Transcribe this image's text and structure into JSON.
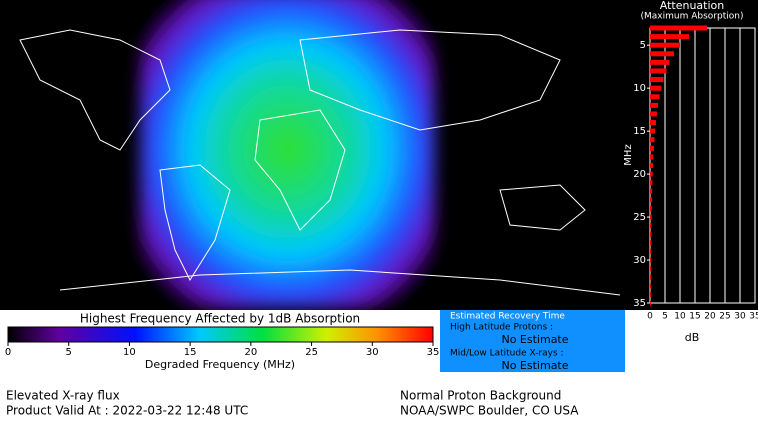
{
  "map": {},
  "colorbar": {
    "title": "Highest Frequency Affected by 1dB Absorption",
    "label": "Degraded Frequency (MHz)",
    "range": [
      0,
      35
    ],
    "ticks": [
      0,
      5,
      10,
      15,
      20,
      25,
      30,
      35
    ]
  },
  "recovery": {
    "title": "Estimated Recovery Time",
    "high_label": "High Latitude Protons :",
    "high_value": "No Estimate",
    "low_label": "Mid/Low Latitude X-rays :",
    "low_value": "No Estimate"
  },
  "footer": {
    "left_1": "Elevated X-ray flux",
    "left_2": "Product Valid At : 2022-03-22 12:48 UTC",
    "right_1": "Normal Proton Background",
    "right_2": "NOAA/SWPC Boulder, CO USA"
  },
  "chart_data": {
    "type": "hbar",
    "title": "Attenuation",
    "subtitle": "(Maximum Absorption)",
    "x_label": "dB",
    "y_label": "MHz",
    "color": "#ff0000",
    "categories": [
      3,
      4,
      5,
      6,
      7,
      8,
      9,
      10,
      11,
      12,
      13,
      14,
      15,
      16,
      17,
      18,
      19,
      20,
      21,
      22,
      23,
      24,
      25,
      26,
      27,
      28,
      29,
      30,
      31,
      32,
      33,
      34,
      35
    ],
    "values": [
      19,
      13,
      10,
      8,
      6.5,
      5.5,
      4.5,
      3.8,
      3.2,
      2.7,
      2.3,
      2,
      1.7,
      1.5,
      1.3,
      1.1,
      1,
      0.9,
      0.8,
      0.7,
      0.7,
      0.6,
      0.6,
      0.5,
      0.5,
      0.5,
      0.4,
      0.4,
      0.4,
      0.4,
      0.3,
      0.3,
      0.3
    ],
    "xlim": [
      0,
      35
    ],
    "xticks": [
      0,
      5,
      10,
      15,
      20,
      25,
      30,
      35
    ],
    "ylim": [
      3,
      35
    ],
    "yticks": [
      5,
      10,
      15,
      20,
      25,
      30,
      35
    ],
    "grid": true
  }
}
